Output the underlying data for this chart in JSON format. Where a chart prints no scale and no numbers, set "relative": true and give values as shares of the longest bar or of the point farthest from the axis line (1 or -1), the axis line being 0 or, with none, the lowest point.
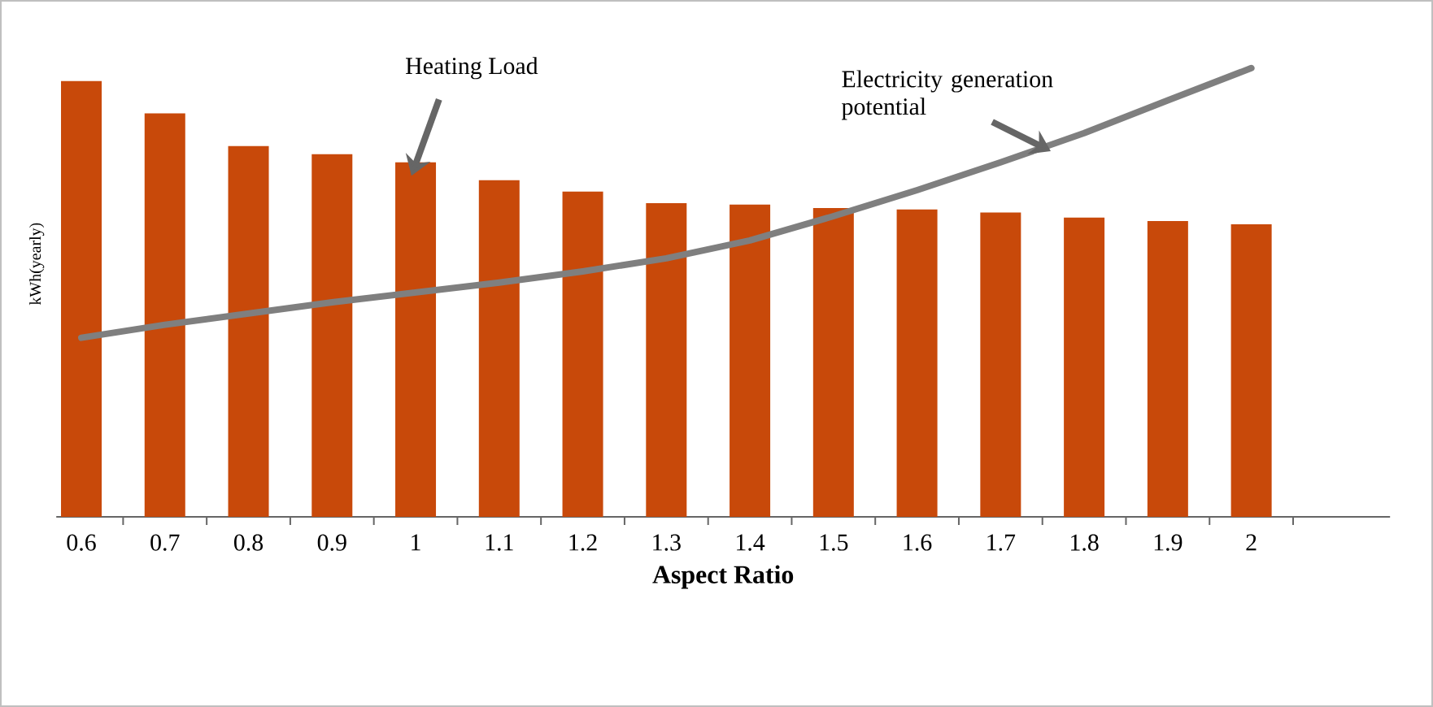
{
  "chart_data": {
    "type": "bar",
    "relative": true,
    "xlabel": "Aspect Ratio",
    "ylabel": "kWh(yearly)",
    "categories": [
      "0.6",
      "0.7",
      "0.8",
      "0.9",
      "1",
      "1.1",
      "1.2",
      "1.3",
      "1.4",
      "1.5",
      "1.6",
      "1.7",
      "1.8",
      "1.9",
      "2"
    ],
    "series": [
      {
        "name": "Heating Load",
        "color": "#c8490a",
        "values": [
          0.971,
          0.899,
          0.826,
          0.808,
          0.79,
          0.75,
          0.725,
          0.699,
          0.696,
          0.688,
          0.685,
          0.678,
          0.667,
          0.659,
          0.652
        ]
      },
      {
        "name": "Electricity generation potential",
        "type": "line",
        "color": "#7f7f7f",
        "values": [
          0.399,
          0.428,
          0.453,
          0.478,
          0.5,
          0.522,
          0.547,
          0.576,
          0.616,
          0.67,
          0.728,
          0.79,
          0.855,
          0.928,
          1.0
        ]
      }
    ]
  }
}
